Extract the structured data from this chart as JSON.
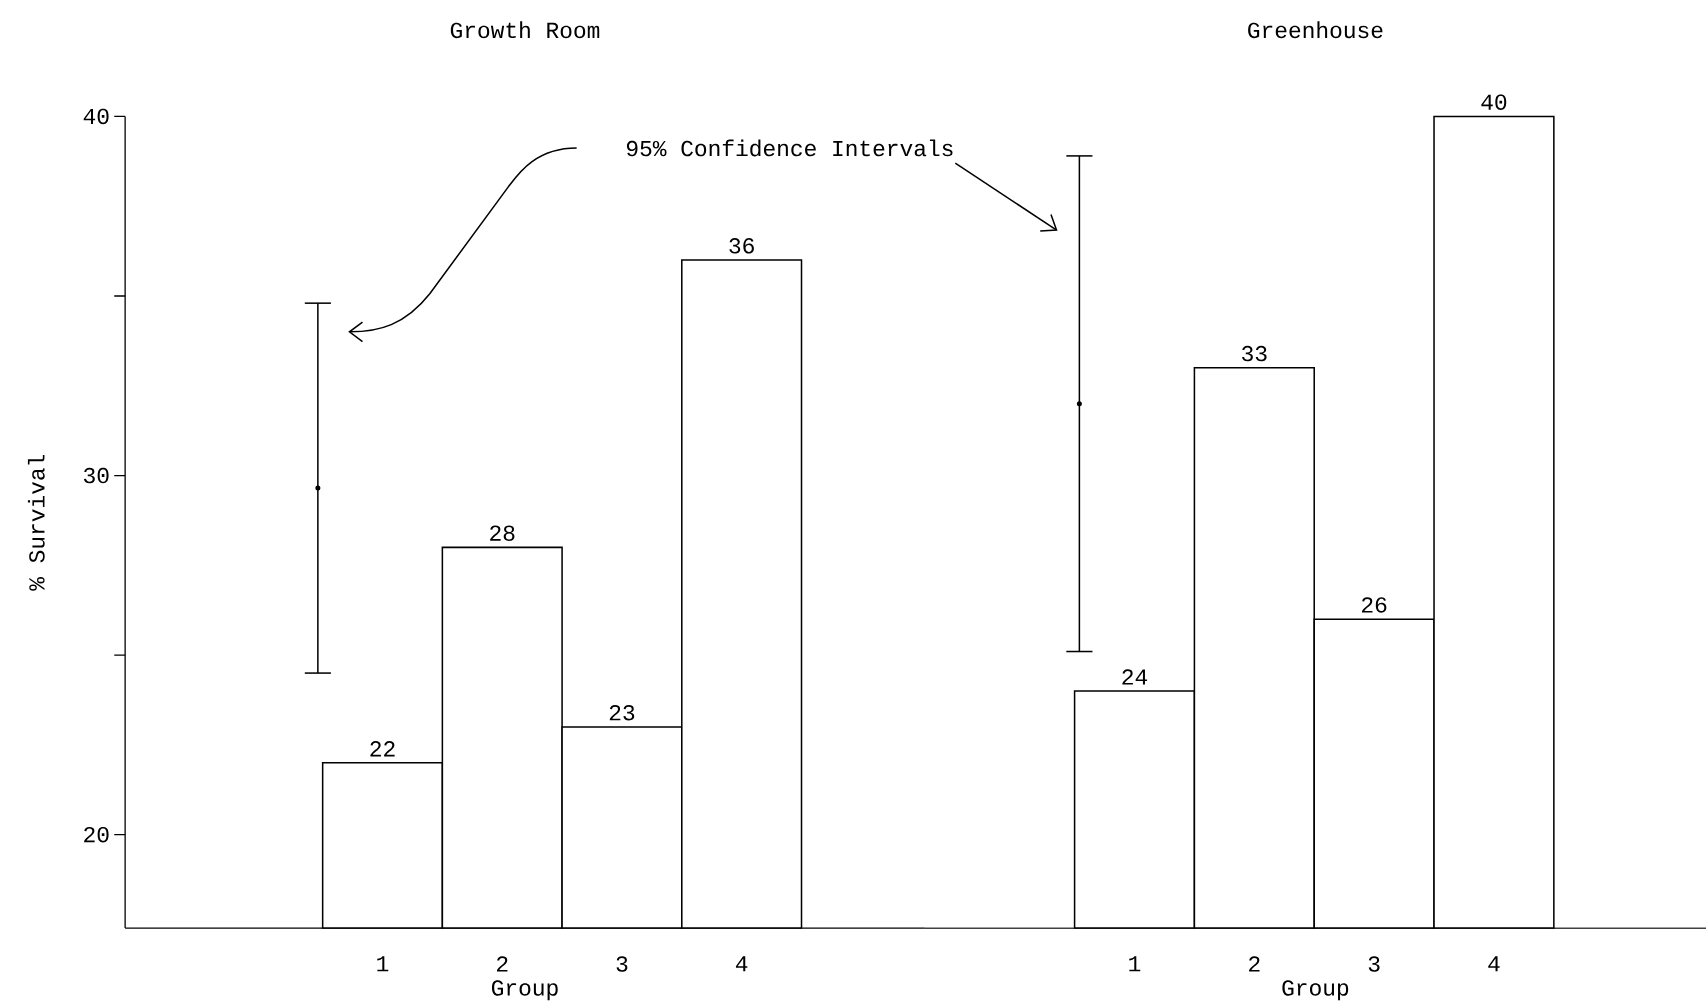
{
  "chart_data": [
    {
      "type": "bar",
      "title": "Growth Room",
      "xlabel": "Group",
      "ylabel": "% Survival",
      "x": [
        1,
        2,
        3,
        4
      ],
      "xlim": [
        -1.15,
        5.53
      ],
      "xticks": [
        1,
        2,
        3,
        4
      ],
      "ylim": [
        17.4,
        40
      ],
      "yticks": [
        20,
        {
          "value": 25,
          "label": null
        },
        30,
        {
          "value": 35,
          "label": null
        },
        40
      ],
      "series": [
        {
          "color": "#ffffff",
          "values": [
            22,
            28,
            23,
            36
          ],
          "value_labels": [
            "22",
            "28",
            "23",
            "36"
          ]
        },
        {
          "type": "scatter",
          "x": [
            0.46
          ],
          "values": [
            29.65
          ],
          "errors": [
            [
              24.5,
              34.8
            ]
          ],
          "marker": "circle",
          "color": "#000000"
        }
      ],
      "annotations": [
        "95% Confidence Intervals"
      ]
    },
    {
      "type": "bar",
      "title": "Greenhouse",
      "xlabel": "Group",
      "x": [
        1,
        2,
        3,
        4
      ],
      "xlim": [
        -0.75,
        5.77
      ],
      "xticks": [
        1,
        2,
        3,
        4
      ],
      "ylim": [
        17.4,
        40
      ],
      "tick_labels": "x",
      "series": [
        {
          "color": "#ffffff",
          "values": [
            24,
            33,
            26,
            40
          ],
          "value_labels": [
            "24",
            "33",
            "26",
            "40"
          ]
        },
        {
          "type": "scatter",
          "x": [
            0.54
          ],
          "values": [
            32.0
          ],
          "errors": [
            [
              25.1,
              38.9
            ]
          ],
          "marker": "circle",
          "color": "#000000"
        }
      ]
    }
  ]
}
